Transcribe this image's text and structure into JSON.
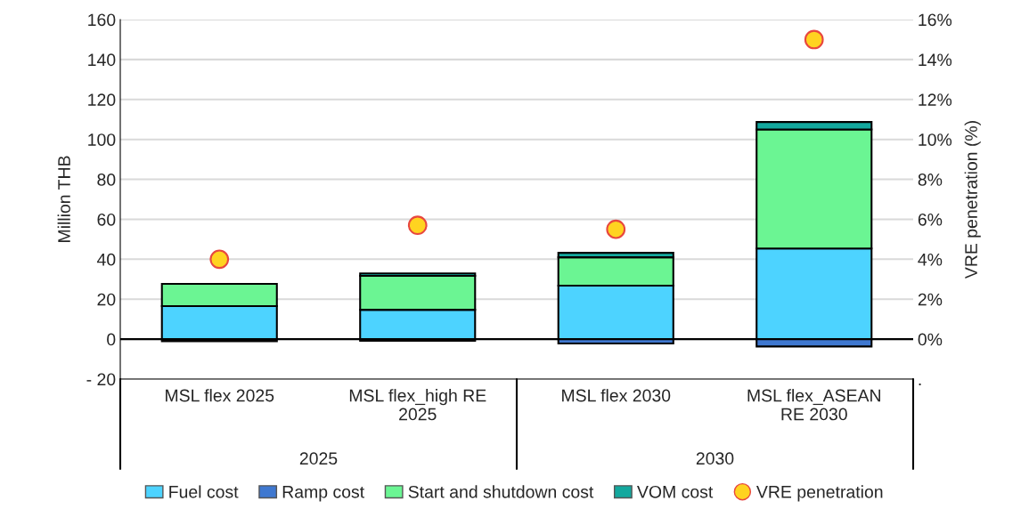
{
  "chart_data": {
    "type": "bar",
    "stacked": true,
    "ylabel": "Million THB",
    "y2label": "VRE penetration (%)",
    "categories": [
      "MSL flex 2025",
      "MSL flex_high RE\n2025",
      "MSL flex 2030",
      "MSL flex_ASEAN\nRE 2030"
    ],
    "series": [
      {
        "name": "Fuel cost",
        "color": "#4dd3ff",
        "values": [
          16.5,
          14.7,
          26.8,
          45.4
        ]
      },
      {
        "name": "Ramp cost",
        "color": "#3f78d0",
        "values": [
          -1.0,
          -0.8,
          -2.2,
          -3.7
        ]
      },
      {
        "name": "Start and shutdown cost",
        "color": "#6bf593",
        "values": [
          11.2,
          17.0,
          14.2,
          59.6
        ]
      },
      {
        "name": "VOM cost",
        "color": "#13a89e",
        "values": [
          null,
          1.2,
          2.2,
          3.7
        ]
      },
      {
        "name": "VRE penetration",
        "type": "scatter",
        "axis": "y2",
        "color": "#ffd320",
        "marker": "circle",
        "values": [
          4.0,
          5.7,
          5.5,
          15.0
        ]
      }
    ],
    "ylim": [
      -20,
      160
    ],
    "yticks": [
      {
        "value": -20,
        "label": "- 20"
      },
      0,
      20,
      40,
      60,
      80,
      100,
      120,
      140,
      160
    ],
    "y2lim": [
      -2,
      16
    ],
    "y2ticks": [
      {
        "value": -2,
        "label": "."
      },
      {
        "value": 0,
        "label": "0%"
      },
      {
        "value": 2,
        "label": "2%"
      },
      {
        "value": 4,
        "label": "4%"
      },
      {
        "value": 6,
        "label": "6%"
      },
      {
        "value": 8,
        "label": "8%"
      },
      {
        "value": 10,
        "label": "10%"
      },
      {
        "value": 12,
        "label": "12%"
      },
      {
        "value": 14,
        "label": "14%"
      },
      {
        "value": 16,
        "label": "16%"
      }
    ],
    "ref_lines": [
      {
        "axis": "y",
        "value": 0,
        "color": "#000000"
      }
    ],
    "annotations": [
      "2025",
      "2030"
    ],
    "grid": "y",
    "legend": "bottom"
  }
}
